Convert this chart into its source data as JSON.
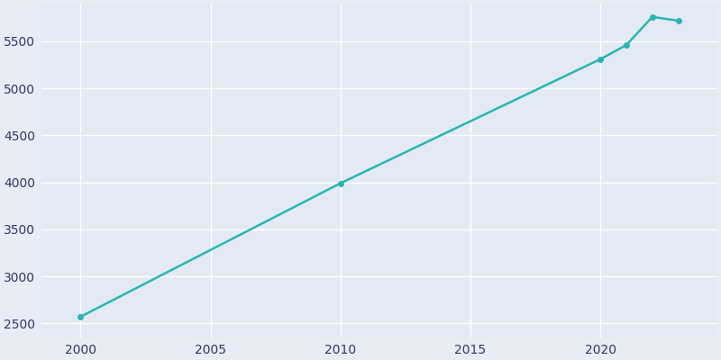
{
  "years": [
    2000,
    2010,
    2020,
    2021,
    2022,
    2023
  ],
  "population": [
    2570,
    3990,
    5310,
    5460,
    5760,
    5720
  ],
  "line_color": "#2ab5b5",
  "marker_style": "o",
  "marker_size": 4,
  "bg_color": "#E8ECF4",
  "plot_bg_color": "#E4EAF3",
  "grid_color": "#ffffff",
  "tick_label_color": "#2d3a5e",
  "xlim": [
    1998.5,
    2024.5
  ],
  "ylim": [
    2350,
    5900
  ],
  "xticks": [
    2000,
    2005,
    2010,
    2015,
    2020
  ],
  "yticks": [
    2500,
    3000,
    3500,
    4000,
    4500,
    5000,
    5500
  ]
}
